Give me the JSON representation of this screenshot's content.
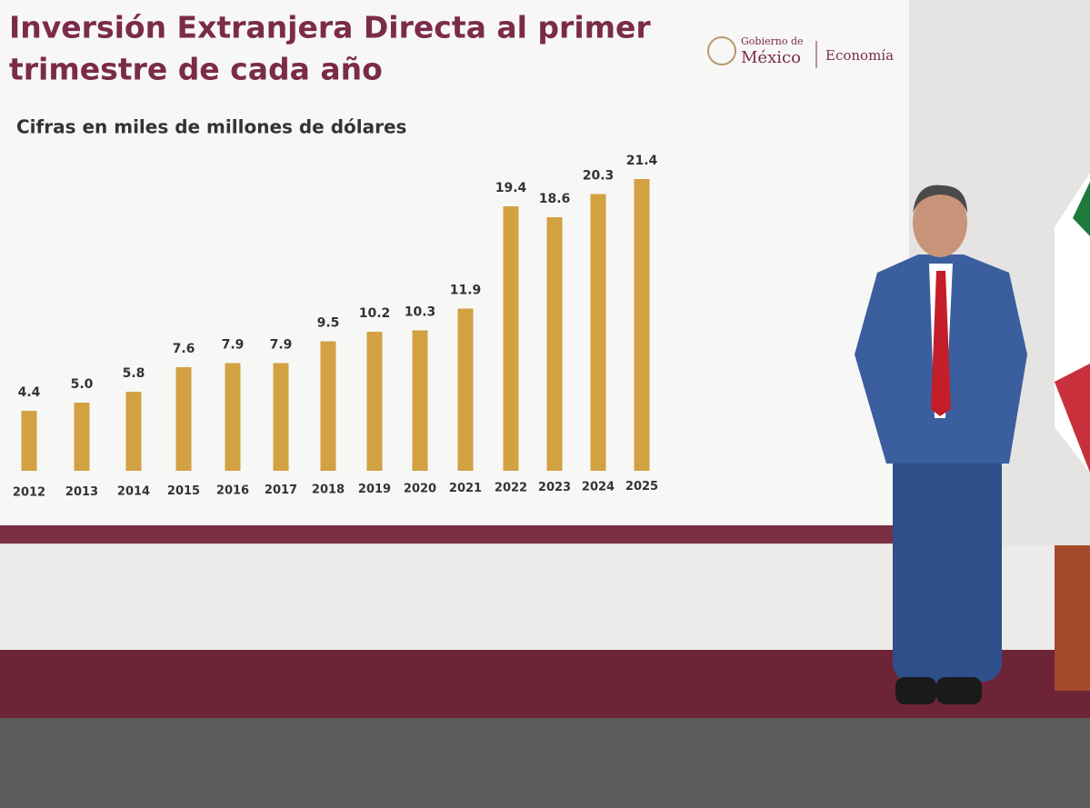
{
  "chart_data": {
    "type": "bar",
    "title": "Inversión Extranjera Directa al primer",
    "title_line2": "trimestre de cada año",
    "subtitle": "Cifras en miles de millones de dólares",
    "categories": [
      "2012",
      "2013",
      "2014",
      "2015",
      "2016",
      "2017",
      "2018",
      "2019",
      "2020",
      "2021",
      "2022",
      "2023",
      "2024",
      "2025"
    ],
    "values": [
      4.4,
      5.0,
      5.8,
      7.6,
      7.9,
      7.9,
      9.5,
      10.2,
      10.3,
      11.9,
      19.4,
      18.6,
      20.3,
      21.4
    ],
    "value_labels": [
      "4.4",
      "5.0",
      "5.8",
      "7.6",
      "7.9",
      "7.9",
      "9.5",
      "10.2",
      "10.3",
      "11.9",
      "19.4",
      "18.6",
      "20.3",
      "21.4"
    ],
    "color": "#d2a142"
  },
  "logos": {
    "gobierno_line1": "Gobierno de",
    "gobierno_line2": "México",
    "ministry": "Economía"
  }
}
